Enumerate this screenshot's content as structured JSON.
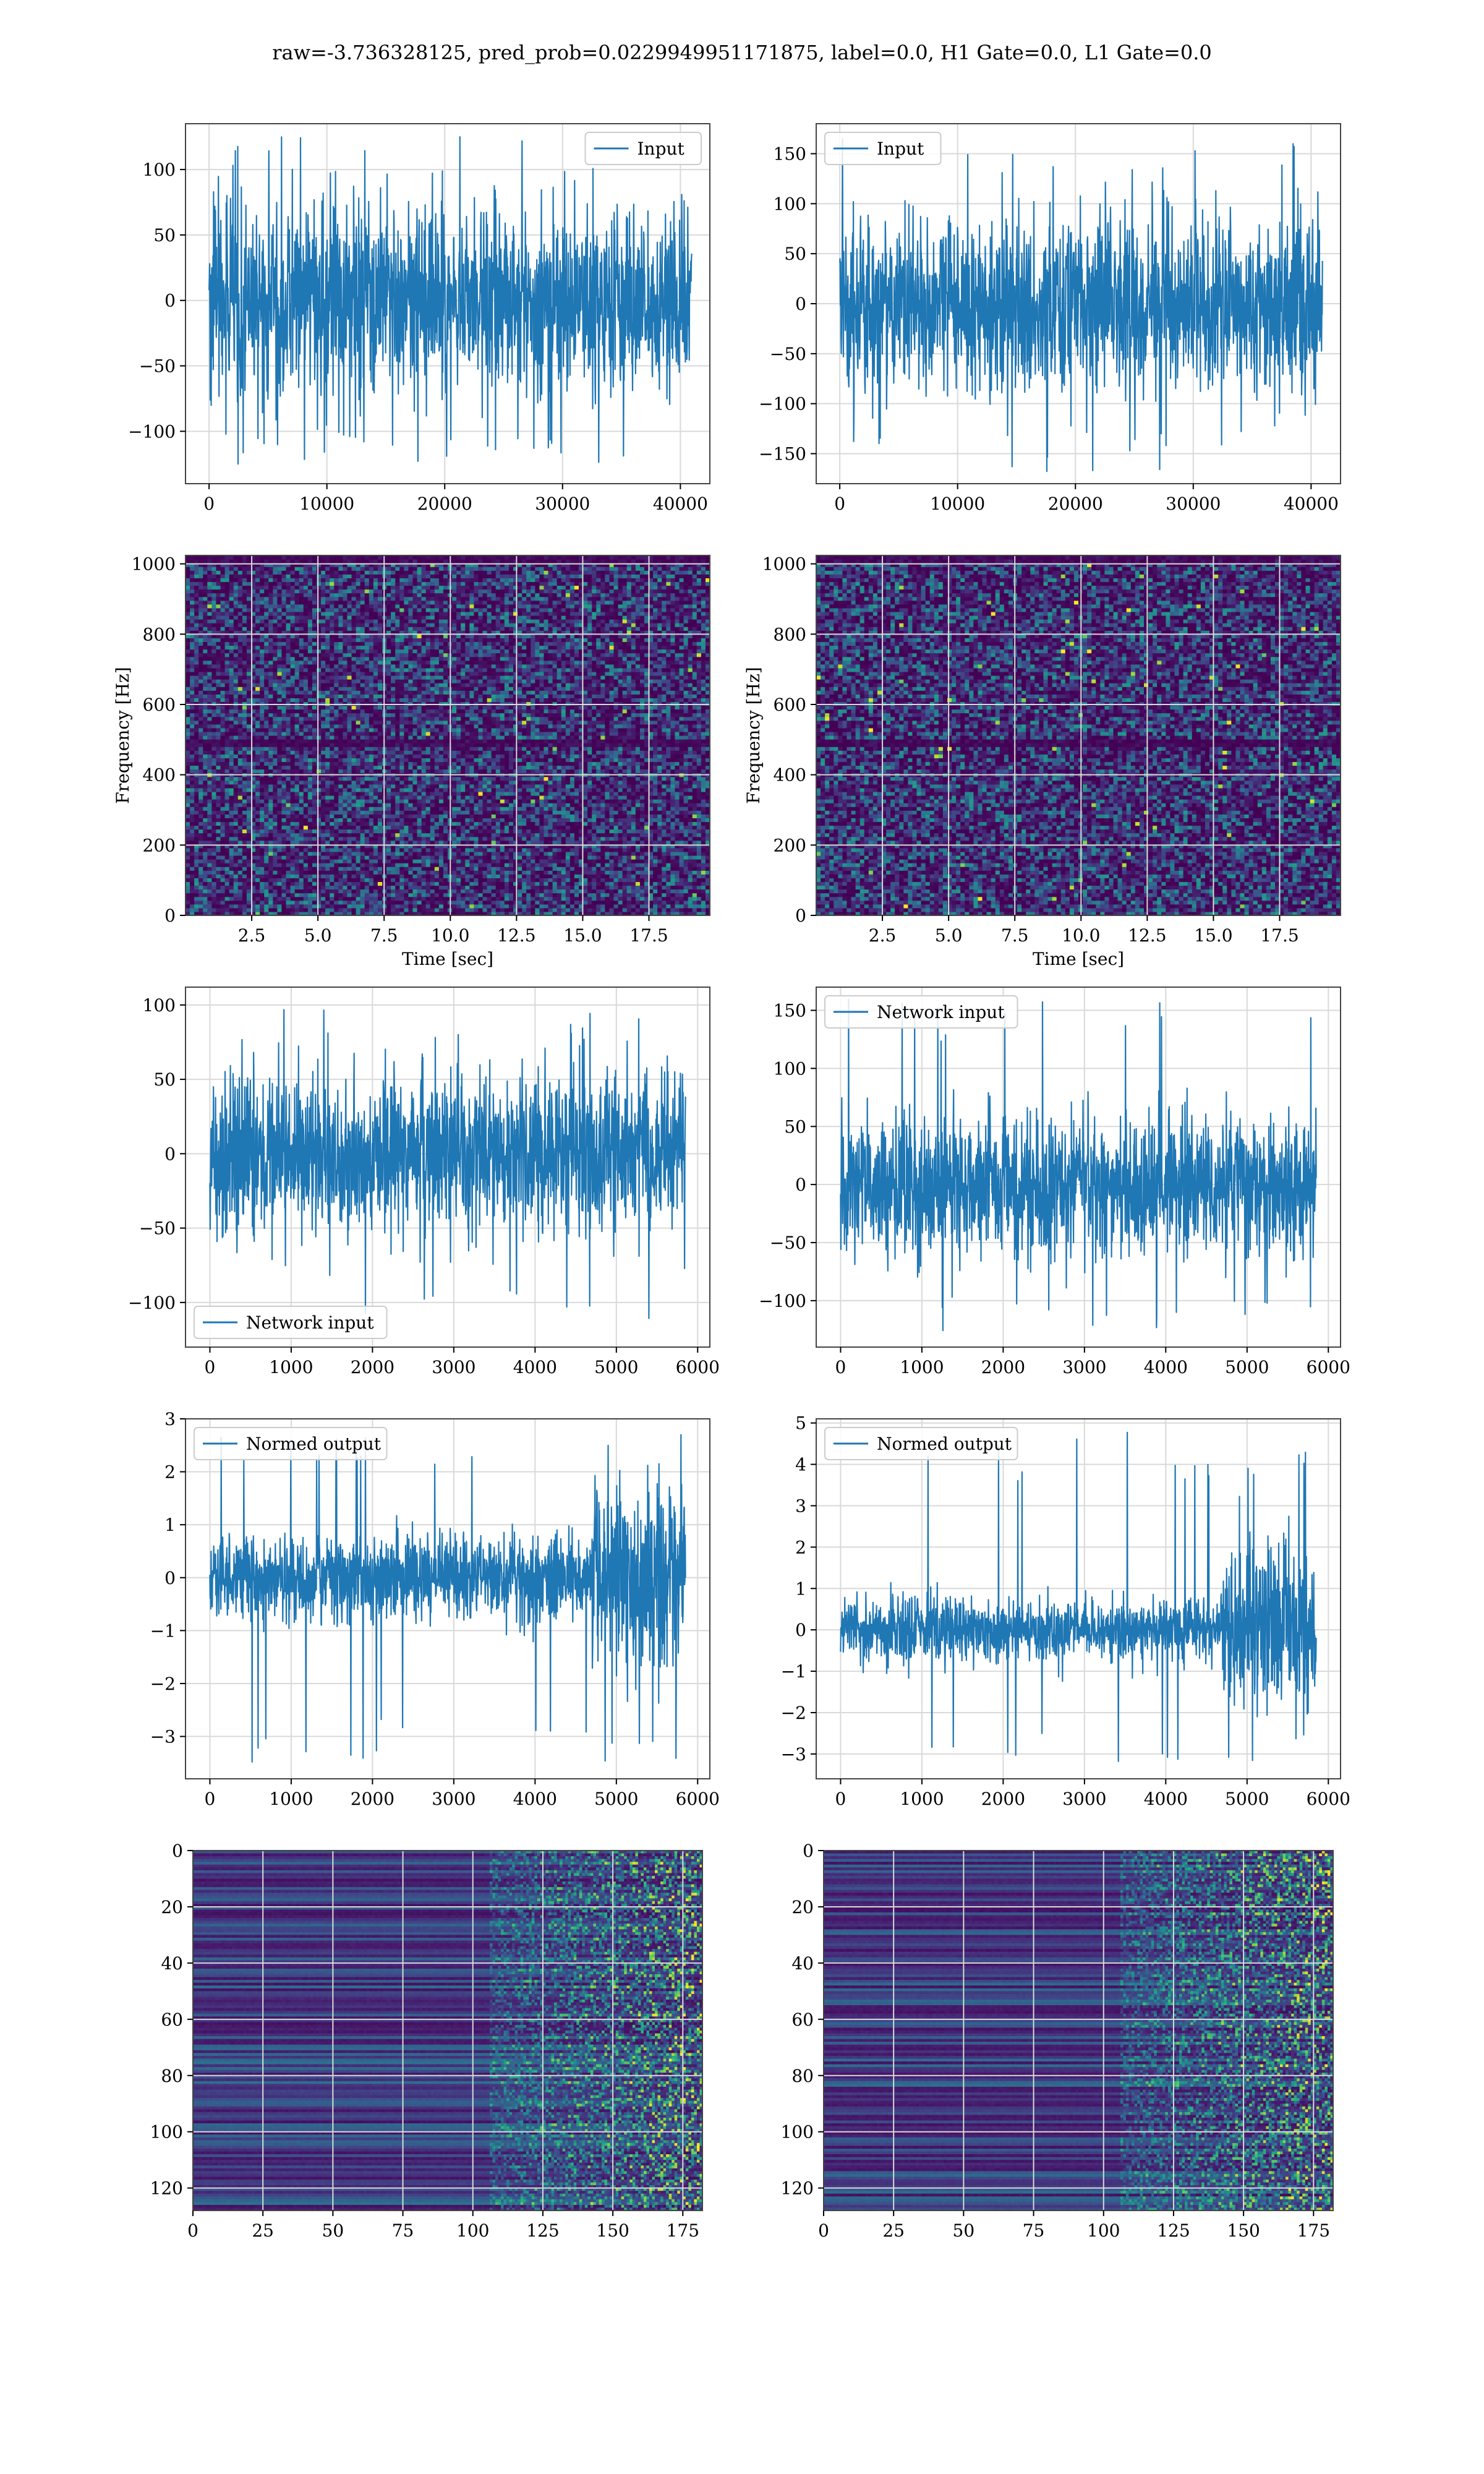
{
  "figure": {
    "suptitle": "raw=-3.736328125, pred_prob=0.0229949951171875, label=0.0, H1 Gate=0.0, L1 Gate=0.0"
  },
  "chart_data": [
    {
      "id": "input-h1",
      "type": "line",
      "panel": "row1-left",
      "legend": "Input",
      "legend_loc": "upper right",
      "xlim": [
        -2000,
        42500
      ],
      "ylim": [
        -140,
        135
      ],
      "xticks": [
        0,
        10000,
        20000,
        30000,
        40000
      ],
      "yticks": [
        -100,
        -50,
        0,
        50,
        100
      ],
      "grid": true,
      "signal": {
        "n": 40960,
        "x_start": 0,
        "x_end": 40960,
        "envelope": [
          -75,
          75
        ],
        "peaks": [
          -126,
          125
        ]
      }
    },
    {
      "id": "input-l1",
      "type": "line",
      "panel": "row1-right",
      "legend": "Input",
      "legend_loc": "upper left",
      "xlim": [
        -2000,
        42500
      ],
      "ylim": [
        -180,
        180
      ],
      "xticks": [
        0,
        10000,
        20000,
        30000,
        40000
      ],
      "yticks": [
        -150,
        -100,
        -50,
        0,
        50,
        100,
        150
      ],
      "grid": true,
      "signal": {
        "n": 40960,
        "x_start": 0,
        "x_end": 40960,
        "envelope": [
          -85,
          90
        ],
        "peaks": [
          -168,
          165
        ]
      }
    },
    {
      "id": "spectrogram-h1",
      "type": "heatmap",
      "panel": "row2-left",
      "xlabel": "Time [sec]",
      "ylabel": "Frequency [Hz]",
      "xlim": [
        0,
        19.8
      ],
      "ylim": [
        0,
        1024
      ],
      "xticks": [
        2.5,
        5.0,
        7.5,
        10.0,
        12.5,
        15.0,
        17.5
      ],
      "xtick_labels": [
        "2.5",
        "5.0",
        "7.5",
        "10.0",
        "12.5",
        "15.0",
        "17.5"
      ],
      "yticks": [
        0,
        200,
        400,
        600,
        800,
        1000
      ],
      "colormap": "viridis",
      "grid": true,
      "dark_bands_hz": [
        490,
        1020
      ]
    },
    {
      "id": "spectrogram-l1",
      "type": "heatmap",
      "panel": "row2-right",
      "xlabel": "Time [sec]",
      "ylabel": "Frequency [Hz]",
      "xlim": [
        0,
        19.8
      ],
      "ylim": [
        0,
        1024
      ],
      "xticks": [
        2.5,
        5.0,
        7.5,
        10.0,
        12.5,
        15.0,
        17.5
      ],
      "xtick_labels": [
        "2.5",
        "5.0",
        "7.5",
        "10.0",
        "12.5",
        "15.0",
        "17.5"
      ],
      "yticks": [
        0,
        200,
        400,
        600,
        800,
        1000
      ],
      "colormap": "viridis",
      "grid": true,
      "dark_bands_hz": [
        490,
        1020
      ]
    },
    {
      "id": "network-input-h1",
      "type": "line",
      "panel": "row3-left",
      "legend": "Network input",
      "legend_loc": "lower left",
      "xlim": [
        -300,
        6150
      ],
      "ylim": [
        -130,
        112
      ],
      "xticks": [
        0,
        1000,
        2000,
        3000,
        4000,
        5000,
        6000
      ],
      "yticks": [
        -100,
        -50,
        0,
        50,
        100
      ],
      "grid": true,
      "signal": {
        "n": 5800,
        "x_start": 0,
        "x_end": 5850,
        "envelope": [
          -55,
          55
        ],
        "peaks": [
          -120,
          102
        ]
      }
    },
    {
      "id": "network-input-l1",
      "type": "line",
      "panel": "row3-right",
      "legend": "Network input",
      "legend_loc": "upper left",
      "xlim": [
        -300,
        6150
      ],
      "ylim": [
        -140,
        170
      ],
      "xticks": [
        0,
        1000,
        2000,
        3000,
        4000,
        5000,
        6000
      ],
      "yticks": [
        -100,
        -50,
        0,
        50,
        100,
        150
      ],
      "grid": true,
      "signal": {
        "n": 5800,
        "x_start": 0,
        "x_end": 5850,
        "envelope": [
          -60,
          65
        ],
        "peaks": [
          -128,
          163
        ]
      }
    },
    {
      "id": "normed-output-h1",
      "type": "line",
      "panel": "row4-left",
      "legend": "Normed output",
      "legend_loc": "upper left",
      "xlim": [
        -300,
        6150
      ],
      "ylim": [
        -3.8,
        3.0
      ],
      "xticks": [
        0,
        1000,
        2000,
        3000,
        4000,
        5000,
        6000
      ],
      "yticks": [
        -3,
        -2,
        -1,
        0,
        1,
        2,
        3
      ],
      "grid": true,
      "signal": {
        "n": 5800,
        "x_start": 0,
        "x_end": 5850,
        "envelope": [
          -0.8,
          0.8
        ],
        "burst_start": 4700,
        "burst_envelope": [
          -1.8,
          1.8
        ],
        "peaks": [
          -3.5,
          2.7
        ]
      }
    },
    {
      "id": "normed-output-l1",
      "type": "line",
      "panel": "row4-right",
      "legend": "Normed output",
      "legend_loc": "upper left",
      "xlim": [
        -300,
        6150
      ],
      "ylim": [
        -3.6,
        5.1
      ],
      "xticks": [
        0,
        1000,
        2000,
        3000,
        4000,
        5000,
        6000
      ],
      "yticks": [
        -3,
        -2,
        -1,
        0,
        1,
        2,
        3,
        4,
        5
      ],
      "grid": true,
      "signal": {
        "n": 5800,
        "x_start": 0,
        "x_end": 5850,
        "envelope": [
          -0.8,
          0.8
        ],
        "burst_start": 4700,
        "burst_envelope": [
          -2.0,
          2.2
        ],
        "peaks": [
          -3.3,
          4.8
        ]
      }
    },
    {
      "id": "feature-map-h1",
      "type": "heatmap",
      "panel": "row5-left",
      "xlim": [
        0,
        182
      ],
      "ylim": [
        128,
        0
      ],
      "xticks": [
        0,
        25,
        50,
        75,
        100,
        125,
        150,
        175
      ],
      "yticks": [
        0,
        20,
        40,
        60,
        80,
        100,
        120
      ],
      "colormap": "viridis",
      "grid": true,
      "activity_onset": 105
    },
    {
      "id": "feature-map-l1",
      "type": "heatmap",
      "panel": "row5-right",
      "xlim": [
        0,
        182
      ],
      "ylim": [
        128,
        0
      ],
      "xticks": [
        0,
        25,
        50,
        75,
        100,
        125,
        150,
        175
      ],
      "yticks": [
        0,
        20,
        40,
        60,
        80,
        100,
        120
      ],
      "colormap": "viridis",
      "grid": true,
      "activity_onset": 105
    }
  ]
}
